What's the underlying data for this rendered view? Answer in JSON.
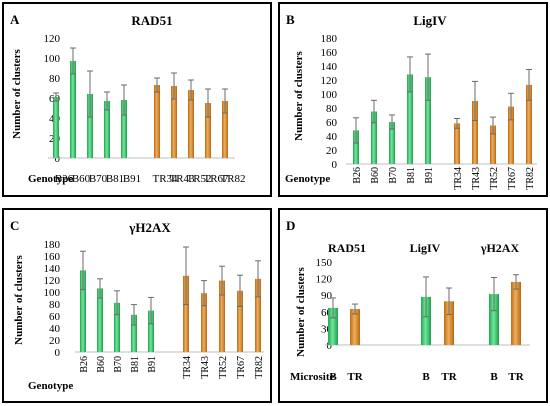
{
  "chart_data": [
    {
      "panel": "A",
      "type": "bar",
      "title": "RAD51",
      "ylabel": "Number of clusters",
      "xlabel": "Genotype",
      "ylim": [
        0,
        120
      ],
      "yticks": [
        0,
        20,
        40,
        60,
        80,
        100,
        120
      ],
      "categories": [
        "B26",
        "B60",
        "B70",
        "B81",
        "B91",
        "TR34",
        "TR43",
        "TR52",
        "TR67",
        "TR82"
      ],
      "values": [
        61,
        97,
        64,
        57,
        58,
        73,
        72,
        68,
        55,
        57
      ],
      "errors": [
        4,
        13,
        23,
        9,
        15,
        7,
        13,
        10,
        14,
        12
      ],
      "colors": [
        "#2eaf5e",
        "#2eaf5e",
        "#2eaf5e",
        "#2eaf5e",
        "#2eaf5e",
        "#c87619",
        "#c87619",
        "#c87619",
        "#c87619",
        "#c87619"
      ]
    },
    {
      "panel": "B",
      "type": "bar",
      "title": "LigIV",
      "ylabel": "Number of clusters",
      "xlabel": "Genotype",
      "ylim": [
        0,
        180
      ],
      "yticks": [
        0,
        20,
        40,
        60,
        80,
        100,
        120,
        140,
        160,
        180
      ],
      "categories": [
        "B26",
        "B60",
        "B70",
        "B81",
        "B91",
        "TR34",
        "TR43",
        "TR52",
        "TR67",
        "TR82"
      ],
      "values": [
        48,
        75,
        60,
        128,
        124,
        58,
        90,
        55,
        82,
        113
      ],
      "errors": [
        18,
        16,
        10,
        25,
        33,
        7,
        28,
        12,
        19,
        22
      ],
      "colors": [
        "#2eaf5e",
        "#2eaf5e",
        "#2eaf5e",
        "#2eaf5e",
        "#2eaf5e",
        "#c87619",
        "#c87619",
        "#c87619",
        "#c87619",
        "#c87619"
      ]
    },
    {
      "panel": "C",
      "type": "bar",
      "title": "γH2AX",
      "ylabel": "Number of clusters",
      "xlabel": "Genotype",
      "ylim": [
        0,
        180
      ],
      "yticks": [
        0,
        20,
        40,
        60,
        80,
        100,
        120,
        140,
        160,
        180
      ],
      "categories": [
        "B26",
        "B60",
        "B70",
        "B81",
        "B91",
        "TR34",
        "TR43",
        "TR52",
        "TR67",
        "TR82"
      ],
      "values": [
        136,
        106,
        82,
        62,
        69,
        127,
        98,
        119,
        102,
        122
      ],
      "errors": [
        32,
        16,
        20,
        17,
        22,
        48,
        21,
        24,
        26,
        30
      ],
      "colors": [
        "#2eaf5e",
        "#2eaf5e",
        "#2eaf5e",
        "#2eaf5e",
        "#2eaf5e",
        "#c87619",
        "#c87619",
        "#c87619",
        "#c87619",
        "#c87619"
      ]
    },
    {
      "panel": "D",
      "type": "bar",
      "title": "",
      "group_titles": [
        "RAD51",
        "LigIV",
        "γH2AX"
      ],
      "ylabel": "Number of clusters",
      "xlabel": "Microsite",
      "ylim": [
        0,
        150
      ],
      "yticks": [
        0,
        30,
        60,
        90,
        120,
        150
      ],
      "categories": [
        "B",
        "TR",
        "B",
        "TR",
        "B",
        "TR"
      ],
      "values": [
        67,
        65,
        87,
        79,
        92,
        114
      ],
      "errors": [
        18,
        9,
        36,
        24,
        30,
        13
      ],
      "colors": [
        "#2eaf5e",
        "#c87619",
        "#2eaf5e",
        "#c87619",
        "#2eaf5e",
        "#c87619"
      ]
    }
  ]
}
